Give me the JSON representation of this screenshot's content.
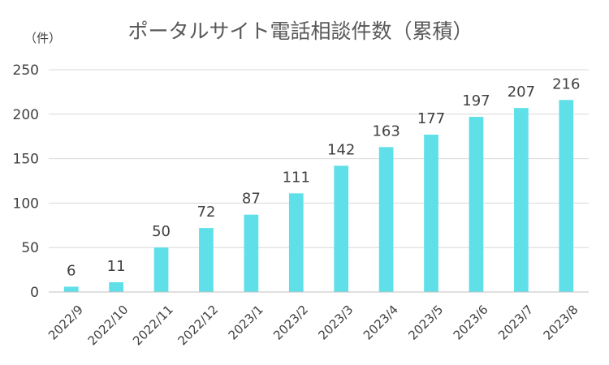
{
  "chart_data": {
    "type": "bar",
    "title": "ポータルサイト電話相談件数（累積）",
    "y_unit_label": "（件）",
    "categories": [
      "2022/9",
      "2022/10",
      "2022/11",
      "2022/12",
      "2023/1",
      "2023/2",
      "2023/3",
      "2023/4",
      "2023/5",
      "2023/6",
      "2023/7",
      "2023/8"
    ],
    "values": [
      6,
      11,
      50,
      72,
      87,
      111,
      142,
      163,
      177,
      197,
      207,
      216
    ],
    "ylim": [
      0,
      250
    ],
    "yticks": [
      0,
      50,
      100,
      150,
      200,
      250
    ],
    "grid": true,
    "legend": "none",
    "bar_color": "#5fe0e8"
  }
}
